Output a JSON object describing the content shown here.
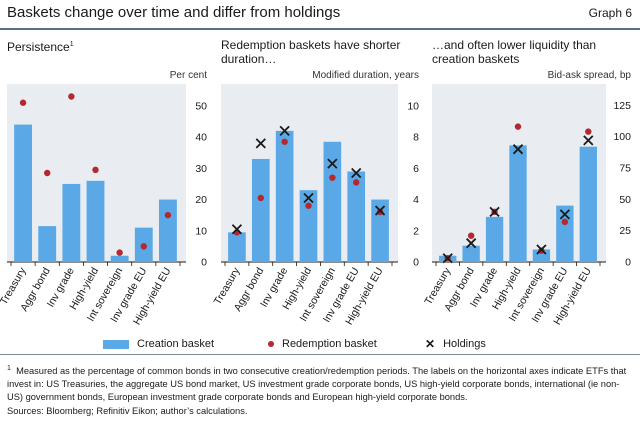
{
  "header": {
    "title": "Baskets change over time and differ from holdings",
    "graph_number": "Graph 6"
  },
  "legend": {
    "creation": "Creation basket",
    "redemption": "Redemption basket",
    "holdings": "Holdings"
  },
  "footnote": {
    "marker": "1",
    "text": "Measured as the percentage of common bonds in two consecutive creation/redemption periods. The labels on the horizontal axes indicate ETFs that invest in: US Treasuries, the aggregate US bond market, US investment grade corporate bonds, US high-yield corporate bonds, international (ie non-US) government bonds, European investment grade corporate bonds and European high-yield corporate bonds."
  },
  "sources": "Sources: Bloomberg; Refinitiv Eikon; author’s calculations.",
  "colors": {
    "creation": "#5aa9e6",
    "redemption": "#b5282e",
    "holdings": "#1a1a1a",
    "panel_bg": "#e9edf1"
  },
  "panels": [
    {
      "title": "Persistence",
      "title_sup": "1",
      "unit": "Per cent"
    },
    {
      "title": "Redemption baskets have shorter duration…",
      "unit": "Modified duration, years"
    },
    {
      "title": "…and often lower liquidity than creation baskets",
      "unit": "Bid-ask spread, bp"
    }
  ],
  "chart_data": [
    {
      "type": "bar",
      "categories": [
        "Treasury",
        "Aggr bond",
        "Inv grade",
        "High-yield",
        "Int sovereign",
        "Inv grade EU",
        "High-yield EU"
      ],
      "ylim": [
        0,
        57
      ],
      "yticks": [
        0,
        10,
        20,
        30,
        40,
        50
      ],
      "ylabel": "Per cent",
      "series": [
        {
          "name": "Creation basket",
          "kind": "bar",
          "values": [
            44,
            11.5,
            25,
            26,
            2,
            11,
            20
          ]
        },
        {
          "name": "Redemption basket",
          "kind": "dot",
          "values": [
            51,
            28.5,
            53,
            29.5,
            3,
            5,
            15
          ]
        }
      ]
    },
    {
      "type": "bar",
      "categories": [
        "Treasury",
        "Aggr bond",
        "Inv grade",
        "High-yield",
        "Int sovereign",
        "Inv grade EU",
        "High-yield EU"
      ],
      "ylim": [
        0,
        11.4
      ],
      "yticks": [
        0,
        2,
        4,
        6,
        8,
        10
      ],
      "ylabel": "Modified duration, years",
      "series": [
        {
          "name": "Creation basket",
          "kind": "bar",
          "values": [
            1.9,
            6.6,
            8.4,
            4.6,
            7.7,
            5.8,
            4.0
          ]
        },
        {
          "name": "Redemption basket",
          "kind": "dot",
          "values": [
            1.9,
            4.1,
            7.7,
            3.6,
            5.4,
            5.1,
            3.2
          ]
        },
        {
          "name": "Holdings",
          "kind": "cross",
          "values": [
            2.1,
            7.6,
            8.4,
            4.1,
            6.3,
            5.7,
            3.3
          ]
        }
      ]
    },
    {
      "type": "bar",
      "categories": [
        "Treasury",
        "Aggr bond",
        "Inv grade",
        "High-yield",
        "Int sovereign",
        "Inv grade EU",
        "High-yield EU"
      ],
      "ylim": [
        0,
        142
      ],
      "yticks": [
        0,
        25,
        50,
        75,
        100,
        125
      ],
      "ylabel": "Bid-ask spread, bp",
      "series": [
        {
          "name": "Creation basket",
          "kind": "bar",
          "values": [
            5,
            13,
            36,
            93,
            10,
            45,
            92
          ]
        },
        {
          "name": "Redemption basket",
          "kind": "dot",
          "values": [
            3,
            21,
            40,
            108,
            9,
            32,
            104
          ]
        },
        {
          "name": "Holdings",
          "kind": "cross",
          "values": [
            3,
            15,
            40,
            90,
            10,
            38,
            97
          ]
        }
      ]
    }
  ]
}
